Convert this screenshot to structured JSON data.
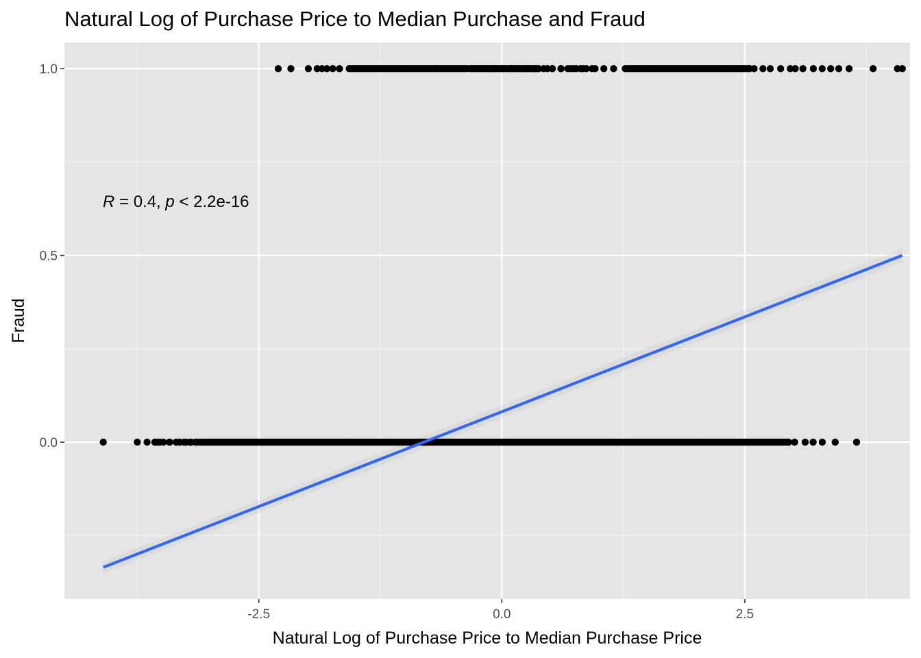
{
  "chart_data": {
    "type": "scatter",
    "title": "Natural Log of Purchase Price to Median Purchase and Fraud",
    "xlabel": "Natural Log of Purchase Price to Median Purchase Price",
    "ylabel": "Fraud",
    "xlim": [
      -4.5,
      4.2
    ],
    "ylim": [
      -0.42,
      1.07
    ],
    "x_ticks": [
      -2.5,
      0.0,
      2.5
    ],
    "x_tick_labels": [
      "-2.5",
      "0.0",
      "2.5"
    ],
    "y_ticks": [
      0.0,
      0.5,
      1.0
    ],
    "y_tick_labels": [
      "0.0",
      "0.5",
      "1.0"
    ],
    "grid": true,
    "panel_background": "#e5e5e5",
    "point_color": "#000000",
    "series": [
      {
        "y": 1.0,
        "dense_ranges": [
          [
            -1.55,
            -0.37
          ],
          [
            -0.32,
            0.4
          ],
          [
            1.3,
            2.55
          ]
        ],
        "sparse_ranges": [
          [
            -0.35,
            0.95
          ],
          [
            2.55,
            3.6
          ]
        ],
        "x": [
          -2.3,
          -2.17,
          -1.99,
          -1.9,
          -1.85,
          -1.8,
          -1.74,
          -1.67,
          -1.57,
          0.47,
          0.52,
          0.61,
          0.68,
          0.74,
          0.81,
          0.87,
          0.96,
          1.05,
          1.15,
          1.27,
          3.82,
          4.07,
          4.12
        ]
      },
      {
        "y": 0.0,
        "dense_ranges": [
          [
            -3.1,
            2.95
          ]
        ],
        "sparse_ranges": [
          [
            -3.55,
            -3.1
          ],
          [
            2.95,
            3.35
          ]
        ],
        "x": [
          -4.1,
          -3.75,
          -3.65,
          -3.57,
          -3.52,
          -3.42,
          -3.35,
          -3.27,
          -3.21,
          -3.15,
          3.43,
          3.65
        ]
      }
    ],
    "fit": {
      "type": "linear",
      "color": "#3366ff",
      "x": [
        -4.1,
        4.12
      ],
      "y": [
        -0.335,
        0.5
      ],
      "ci_color": "#cccccc"
    },
    "annotation": {
      "r_symbol": "R",
      "r_text": " = 0.4, ",
      "p_symbol": "p",
      "p_text": " < 2.2e-16"
    }
  }
}
